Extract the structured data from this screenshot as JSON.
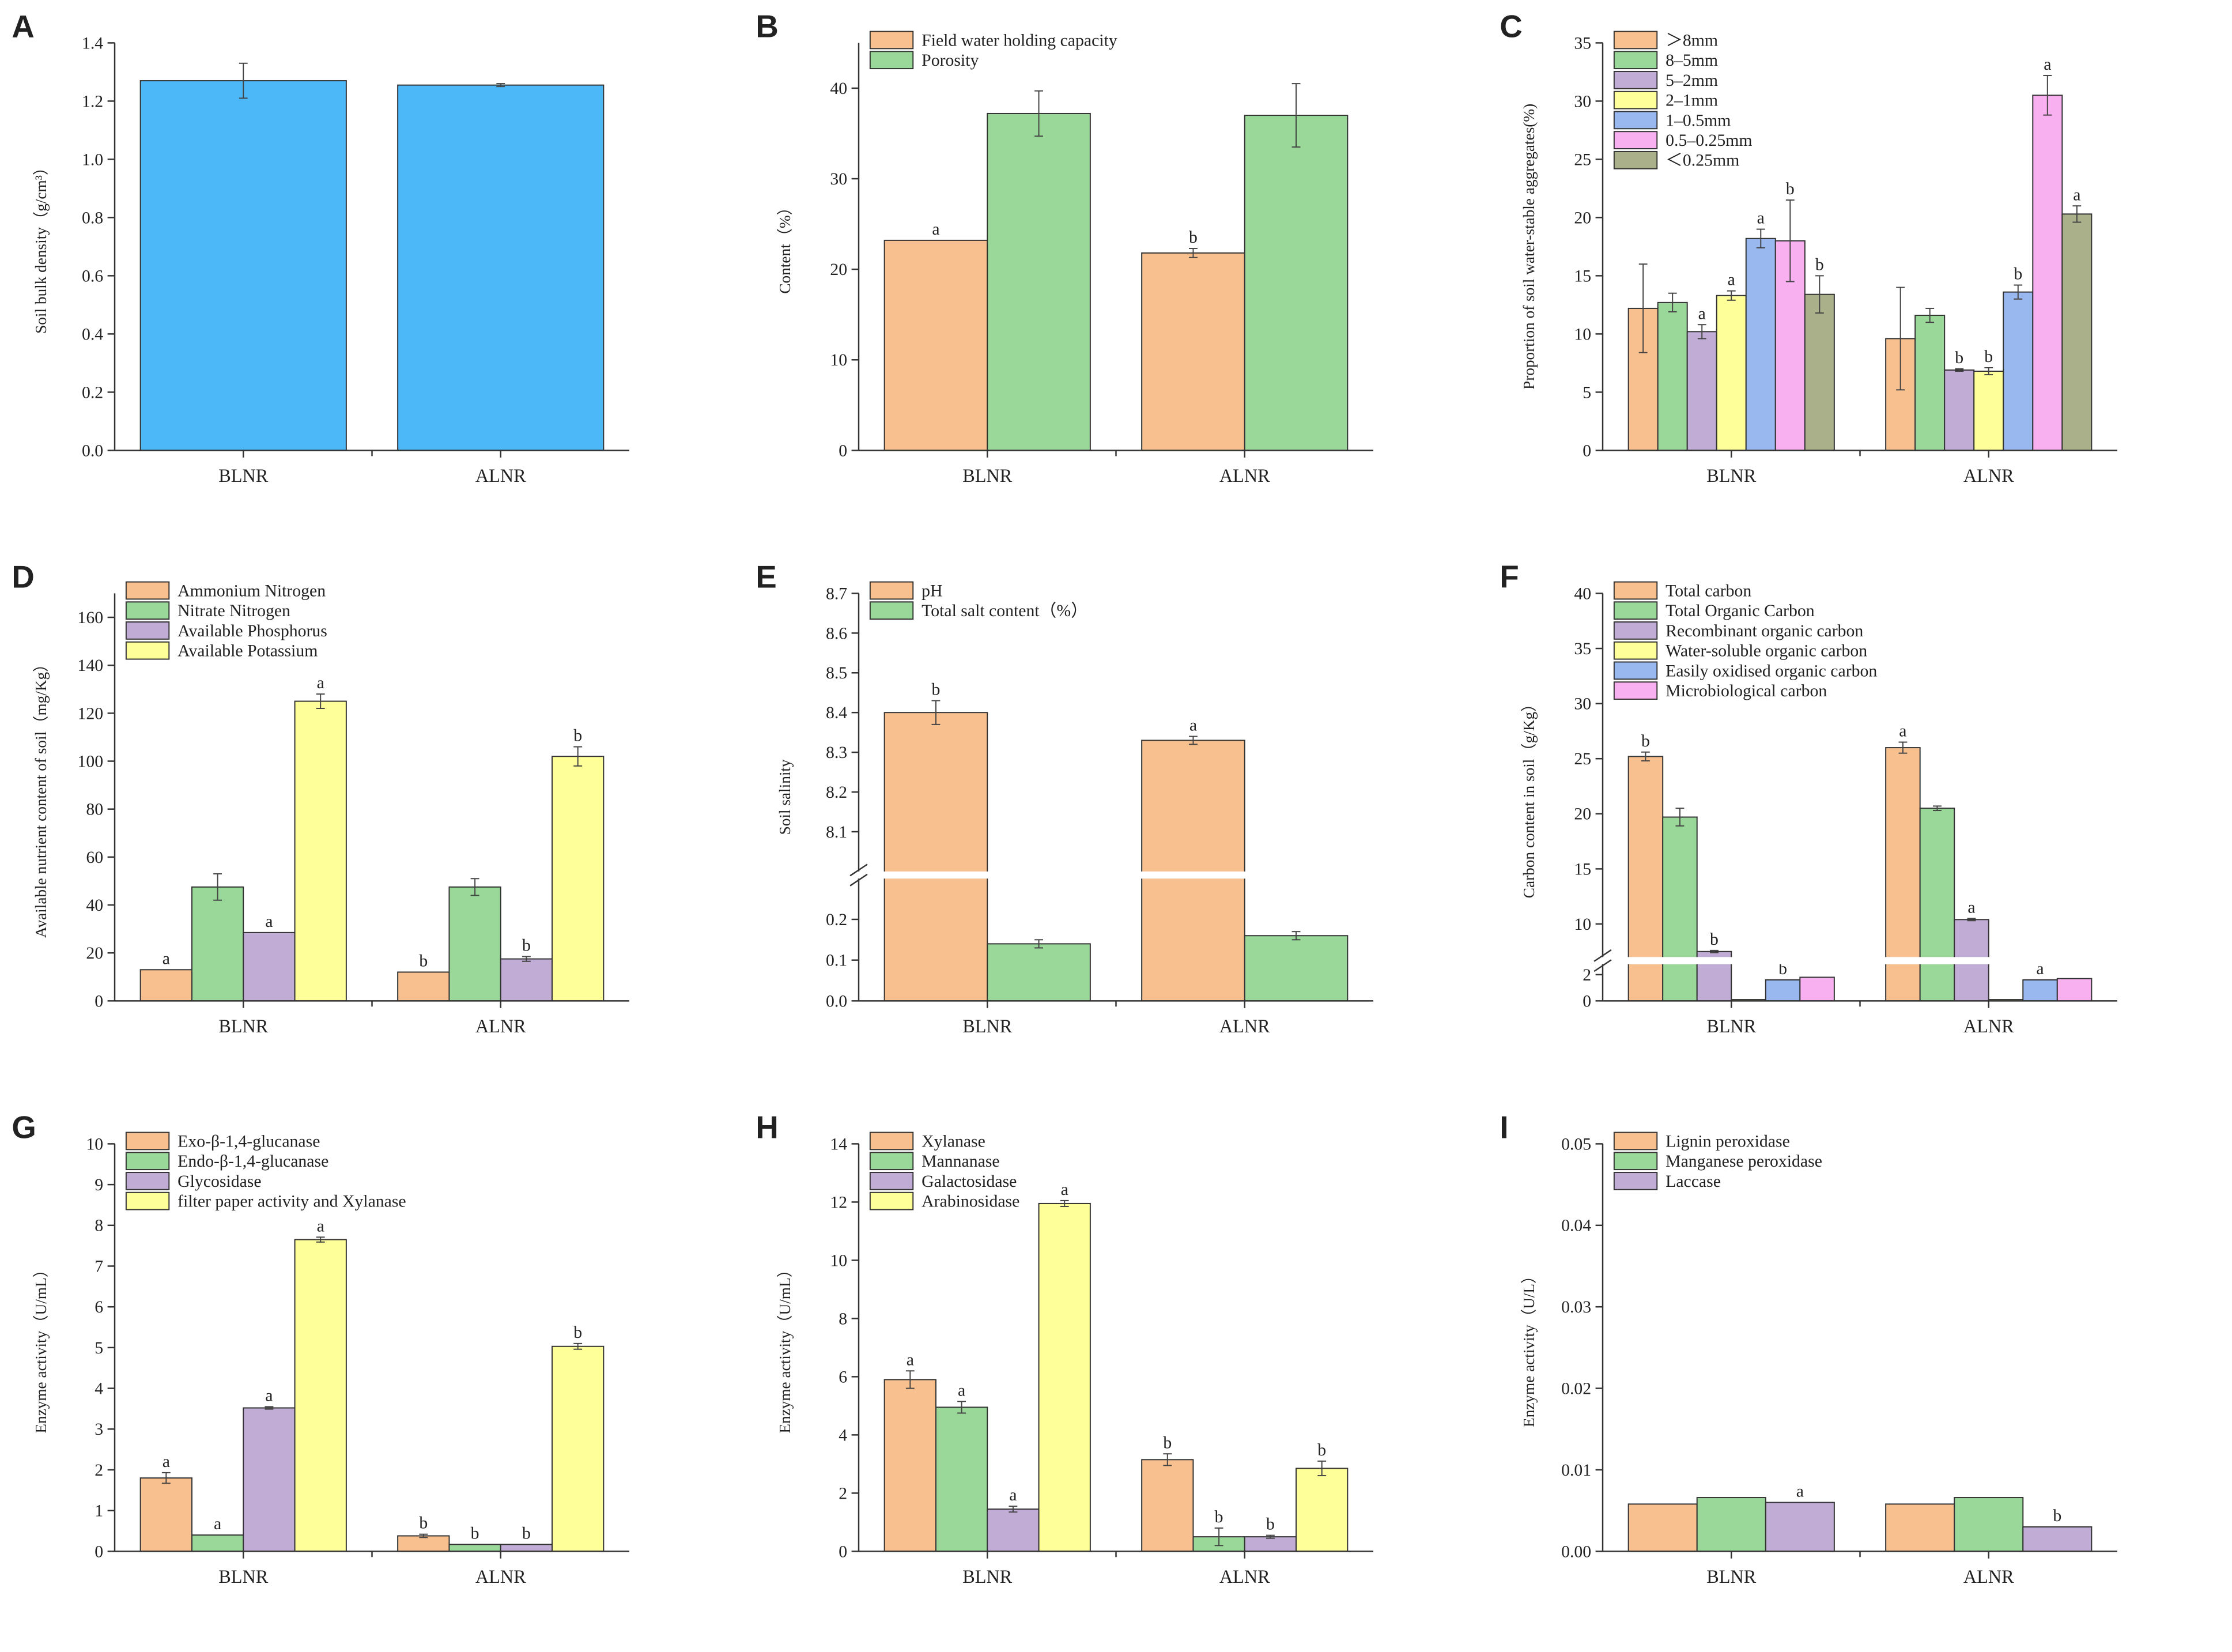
{
  "chart_data": [
    {
      "id": "A",
      "type": "bar",
      "panel_label": "A",
      "ylabel": "Soil bulk density（g/cm³）",
      "categories": [
        "BLNR",
        "ALNR"
      ],
      "ylim": [
        0,
        1.4
      ],
      "yticks": [
        "0.0",
        "0.2",
        "0.4",
        "0.6",
        "0.8",
        "1.0",
        "1.2",
        "1.4"
      ],
      "legend": false,
      "series": [
        {
          "name": "Soil bulk density",
          "color": "#4db8f8",
          "values": [
            1.27,
            1.255
          ],
          "errors": [
            0.06,
            0.005
          ],
          "letters": [
            "",
            ""
          ]
        }
      ]
    },
    {
      "id": "B",
      "type": "bar",
      "panel_label": "B",
      "ylabel": "Content（%）",
      "categories": [
        "BLNR",
        "ALNR"
      ],
      "ylim": [
        0,
        45
      ],
      "yticks": [
        "0",
        "10",
        "20",
        "30",
        "40"
      ],
      "legend": true,
      "series": [
        {
          "name": "Field water holding capacity",
          "color": "#f9c08f",
          "values": [
            23.2,
            21.8
          ],
          "errors": [
            0,
            0.5
          ],
          "letters": [
            "a",
            "b"
          ]
        },
        {
          "name": "Porosity",
          "color": "#9ad89a",
          "values": [
            37.2,
            37.0
          ],
          "errors": [
            2.5,
            3.5
          ],
          "letters": [
            "",
            ""
          ]
        }
      ]
    },
    {
      "id": "C",
      "type": "bar",
      "panel_label": "C",
      "ylabel": "Proportion of soil water-stable aggregates(%)",
      "categories": [
        "BLNR",
        "ALNR"
      ],
      "ylim": [
        0,
        35
      ],
      "yticks": [
        "0",
        "5",
        "10",
        "15",
        "20",
        "25",
        "30",
        "35"
      ],
      "legend": true,
      "series": [
        {
          "name": "＞8mm",
          "color": "#f9c08f",
          "values": [
            12.2,
            9.6
          ],
          "errors": [
            3.8,
            4.4
          ],
          "letters": [
            "",
            ""
          ]
        },
        {
          "name": "8–5mm",
          "color": "#9ad89a",
          "values": [
            12.7,
            11.6
          ],
          "errors": [
            0.8,
            0.6
          ],
          "letters": [
            "",
            ""
          ]
        },
        {
          "name": "5–2mm",
          "color": "#c0acd5",
          "values": [
            10.2,
            6.9
          ],
          "errors": [
            0.6,
            0.1
          ],
          "letters": [
            "a",
            "b"
          ]
        },
        {
          "name": "2–1mm",
          "color": "#ffff99",
          "values": [
            13.3,
            6.8
          ],
          "errors": [
            0.4,
            0.3
          ],
          "letters": [
            "a",
            "b"
          ]
        },
        {
          "name": "1–0.5mm",
          "color": "#99b8f0",
          "values": [
            18.2,
            13.6
          ],
          "errors": [
            0.8,
            0.6
          ],
          "letters": [
            "a",
            "b"
          ]
        },
        {
          "name": "0.5–0.25mm",
          "color": "#f9b0f0",
          "values": [
            18.0,
            30.5
          ],
          "errors": [
            3.5,
            1.7
          ],
          "letters": [
            "b",
            "a"
          ]
        },
        {
          "name": "＜0.25mm",
          "color": "#aab08a",
          "values": [
            13.4,
            20.3
          ],
          "errors": [
            1.6,
            0.7
          ],
          "letters": [
            "b",
            "a"
          ]
        }
      ]
    },
    {
      "id": "D",
      "type": "bar",
      "panel_label": "D",
      "ylabel": "Available nutrient content of soil（mg/Kg）",
      "categories": [
        "BLNR",
        "ALNR"
      ],
      "ylim": [
        0,
        170
      ],
      "yticks": [
        "0",
        "20",
        "40",
        "60",
        "80",
        "100",
        "120",
        "140",
        "160"
      ],
      "legend": true,
      "series": [
        {
          "name": "Ammonium Nitrogen",
          "color": "#f9c08f",
          "values": [
            13,
            12
          ],
          "errors": [
            0,
            0
          ],
          "letters": [
            "a",
            "b"
          ]
        },
        {
          "name": "Nitrate Nitrogen",
          "color": "#9ad89a",
          "values": [
            47.5,
            47.5
          ],
          "errors": [
            5.5,
            3.5
          ],
          "letters": [
            "",
            ""
          ]
        },
        {
          "name": "Available Phosphorus",
          "color": "#c0acd5",
          "values": [
            28.5,
            17.5
          ],
          "errors": [
            0,
            1
          ],
          "letters": [
            "a",
            "b"
          ]
        },
        {
          "name": "Available Potassium",
          "color": "#ffff99",
          "values": [
            125,
            102
          ],
          "errors": [
            3,
            4
          ],
          "letters": [
            "a",
            "b"
          ]
        }
      ]
    },
    {
      "id": "E",
      "type": "bar",
      "panel_label": "E",
      "ylabel": "Soil salinity",
      "categories": [
        "BLNR",
        "ALNR"
      ],
      "break": {
        "lower": [
          0,
          0.3
        ],
        "upper": [
          8.0,
          8.7
        ],
        "lower_fraction": 0.3
      },
      "yticks_lower": [
        "0.0",
        "0.1",
        "0.2"
      ],
      "yticks_upper": [
        "8.1",
        "8.2",
        "8.3",
        "8.4",
        "8.5",
        "8.6",
        "8.7"
      ],
      "legend": true,
      "series": [
        {
          "name": "pH",
          "color": "#f9c08f",
          "values": [
            8.4,
            8.33
          ],
          "errors": [
            0.03,
            0.01
          ],
          "letters": [
            "b",
            "a"
          ]
        },
        {
          "name": "Total salt content（%）",
          "color": "#9ad89a",
          "values": [
            0.14,
            0.16
          ],
          "errors": [
            0.01,
            0.01
          ],
          "letters": [
            "",
            ""
          ]
        }
      ]
    },
    {
      "id": "F",
      "type": "bar",
      "panel_label": "F",
      "ylabel": "Carbon content in soil（g/Kg）",
      "categories": [
        "BLNR",
        "ALNR"
      ],
      "break": {
        "lower": [
          0,
          2.8
        ],
        "upper": [
          7,
          40
        ],
        "lower_fraction": 0.09
      },
      "yticks_lower": [
        "0",
        "2"
      ],
      "yticks_upper": [
        "10",
        "15",
        "20",
        "25",
        "30",
        "35",
        "40"
      ],
      "legend": true,
      "series": [
        {
          "name": "Total carbon",
          "color": "#f9c08f",
          "values": [
            25.2,
            26.0
          ],
          "errors": [
            0.4,
            0.5
          ],
          "letters": [
            "b",
            "a"
          ]
        },
        {
          "name": "Total Organic Carbon",
          "color": "#9ad89a",
          "values": [
            19.7,
            20.5
          ],
          "errors": [
            0.8,
            0.2
          ],
          "letters": [
            "",
            ""
          ]
        },
        {
          "name": "Recombinant organic carbon",
          "color": "#c0acd5",
          "values": [
            7.5,
            10.4
          ],
          "errors": [
            0.1,
            0.1
          ],
          "letters": [
            "b",
            "a"
          ]
        },
        {
          "name": "Water-soluble organic carbon",
          "color": "#ffff99",
          "values": [
            0.1,
            0.1
          ],
          "errors": [
            0,
            0
          ],
          "letters": [
            "",
            ""
          ]
        },
        {
          "name": "Easily oxidised organic carbon",
          "color": "#99b8f0",
          "values": [
            1.6,
            1.6
          ],
          "errors": [
            0,
            0
          ],
          "letters": [
            "b",
            "a"
          ]
        },
        {
          "name": "Microbiological carbon",
          "color": "#f9b0f0",
          "values": [
            1.8,
            1.7
          ],
          "errors": [
            0,
            0
          ],
          "letters": [
            "",
            ""
          ]
        }
      ]
    },
    {
      "id": "G",
      "type": "bar",
      "panel_label": "G",
      "ylabel": "Enzyme activity（U/mL）",
      "categories": [
        "BLNR",
        "ALNR"
      ],
      "ylim": [
        0,
        10
      ],
      "yticks": [
        "0",
        "1",
        "2",
        "3",
        "4",
        "5",
        "6",
        "7",
        "8",
        "9",
        "10"
      ],
      "legend": true,
      "series": [
        {
          "name": "Exo-β-1,4-glucanase",
          "color": "#f9c08f",
          "values": [
            1.8,
            0.38
          ],
          "errors": [
            0.13,
            0.04
          ],
          "letters": [
            "a",
            "b"
          ]
        },
        {
          "name": "Endo-β-1,4-glucanase",
          "color": "#9ad89a",
          "values": [
            0.4,
            0.17
          ],
          "errors": [
            0,
            0
          ],
          "letters": [
            "a",
            "b"
          ]
        },
        {
          "name": "Glycosidase",
          "color": "#c0acd5",
          "values": [
            3.52,
            0.17
          ],
          "errors": [
            0.03,
            0
          ],
          "letters": [
            "a",
            "b"
          ]
        },
        {
          "name": "filter paper activity and Xylanase",
          "color": "#ffff99",
          "values": [
            7.65,
            5.03
          ],
          "errors": [
            0.06,
            0.07
          ],
          "letters": [
            "a",
            "b"
          ]
        }
      ]
    },
    {
      "id": "H",
      "type": "bar",
      "panel_label": "H",
      "ylabel": "Enzyme activity（U/mL）",
      "categories": [
        "BLNR",
        "ALNR"
      ],
      "ylim": [
        0,
        14
      ],
      "yticks": [
        "0",
        "2",
        "4",
        "6",
        "8",
        "10",
        "12",
        "14"
      ],
      "legend": true,
      "series": [
        {
          "name": "Xylanase",
          "color": "#f9c08f",
          "values": [
            5.9,
            3.15
          ],
          "errors": [
            0.3,
            0.2
          ],
          "letters": [
            "a",
            "b"
          ]
        },
        {
          "name": "Mannanase",
          "color": "#9ad89a",
          "values": [
            4.95,
            0.5
          ],
          "errors": [
            0.2,
            0.3
          ],
          "letters": [
            "a",
            "b"
          ]
        },
        {
          "name": "Galactosidase",
          "color": "#c0acd5",
          "values": [
            1.45,
            0.5
          ],
          "errors": [
            0.1,
            0.05
          ],
          "letters": [
            "a",
            "b"
          ]
        },
        {
          "name": "Arabinosidase",
          "color": "#ffff99",
          "values": [
            11.95,
            2.85
          ],
          "errors": [
            0.1,
            0.25
          ],
          "letters": [
            "a",
            "b"
          ]
        }
      ]
    },
    {
      "id": "I",
      "type": "bar",
      "panel_label": "I",
      "ylabel": "Enzyme activity（U/L）",
      "categories": [
        "BLNR",
        "ALNR"
      ],
      "ylim": [
        0,
        0.05
      ],
      "yticks": [
        "0.00",
        "0.01",
        "0.02",
        "0.03",
        "0.04",
        "0.05"
      ],
      "legend": true,
      "series": [
        {
          "name": "Lignin peroxidase",
          "color": "#f9c08f",
          "values": [
            0.0058,
            0.0058
          ],
          "errors": [
            0,
            0
          ],
          "letters": [
            "",
            ""
          ]
        },
        {
          "name": "Manganese peroxidase",
          "color": "#9ad89a",
          "values": [
            0.0066,
            0.0066
          ],
          "errors": [
            0,
            0
          ],
          "letters": [
            "",
            ""
          ]
        },
        {
          "name": "Laccase",
          "color": "#c0acd5",
          "values": [
            0.006,
            0.003
          ],
          "errors": [
            0,
            0
          ],
          "letters": [
            "a",
            "b"
          ]
        }
      ]
    }
  ]
}
